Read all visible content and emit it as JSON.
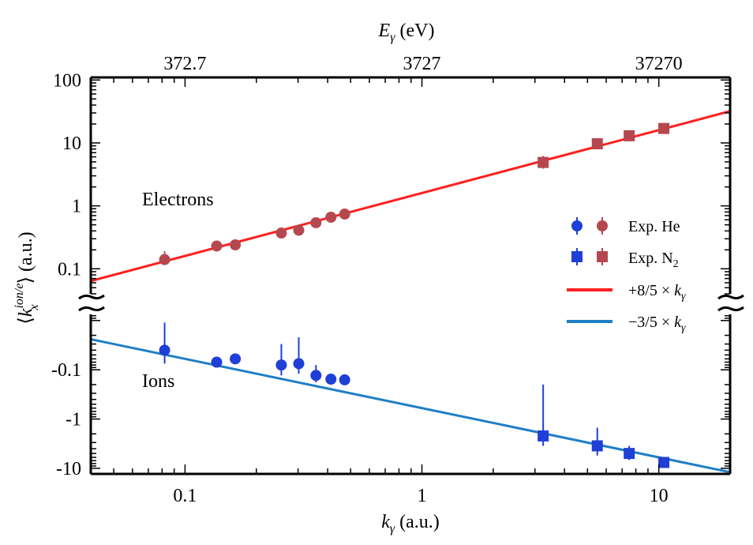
{
  "chart_data": {
    "type": "scatter",
    "title": "",
    "xlabel": "k_γ (a.u.)",
    "xlabel_var": "k",
    "xlabel_sub": "γ",
    "xlabel_unit": " (a.u.)",
    "x_top_label": "E_γ (eV)",
    "x_top_label_var": "E",
    "x_top_label_sub": "γ",
    "x_top_label_unit": " (eV)",
    "ylabel": "⟨k_x^{ion/e}⟩ (a.u.)",
    "ylabel_open": "⟨",
    "ylabel_var": "k",
    "ylabel_sub": "x",
    "ylabel_sup": "ion/e",
    "ylabel_close": "⟩ (a.u.)",
    "xscale": "log",
    "xlim": [
      0.04,
      20
    ],
    "x_ticks": [
      0.1,
      1,
      10
    ],
    "x_tick_labels": [
      "0.1",
      "1",
      "10"
    ],
    "x_top_ticks": [
      0.1,
      1,
      10
    ],
    "x_top_tick_labels": [
      "372.7",
      "3727",
      "37270"
    ],
    "y_upper_scale": "log",
    "y_upper_lim": [
      0.04,
      110
    ],
    "y_upper_ticks": [
      0.1,
      1,
      10,
      100
    ],
    "y_upper_tick_labels": [
      "0.1",
      "1",
      "10",
      "100"
    ],
    "y_lower_scale": "log (negative values)",
    "y_lower_lim": [
      -0.0075,
      -13
    ],
    "y_lower_ticks": [
      -0.1,
      -1,
      -10
    ],
    "y_lower_tick_labels": [
      "-0.1",
      "-1",
      "-10"
    ],
    "annotations": [
      {
        "text": "Electrons",
        "color": "#b5484e",
        "near_x": 0.13,
        "near_y": 1
      },
      {
        "text": "Ions",
        "color": "#1f4fd1",
        "near_x": 0.12,
        "near_y": -0.35
      }
    ],
    "legend": {
      "position": "right",
      "entries": [
        {
          "label": "Exp. He",
          "label_main": "Exp. He",
          "label_sub": "",
          "kind": "points",
          "marker": "circle",
          "colors": [
            "#1f3fd6",
            "#b5484e"
          ]
        },
        {
          "label": "Exp. N₂",
          "label_main": "Exp. N",
          "label_sub": "2",
          "kind": "points",
          "marker": "square",
          "colors": [
            "#1f3fd6",
            "#b5484e"
          ]
        },
        {
          "label": "+8/5 × k_γ",
          "label_main": "+8/5 × ",
          "label_var": "k",
          "label_sub": "γ",
          "kind": "line",
          "color": "#ff1f1f"
        },
        {
          "label": "−3/5 × k_γ",
          "label_main": "−3/5 × ",
          "label_var": "k",
          "label_sub": "γ",
          "kind": "line",
          "color": "#1f7fc4"
        }
      ]
    },
    "series": [
      {
        "name": "+8/5 × k_γ",
        "kind": "line",
        "color": "#ff1f1f",
        "panel": "upper",
        "slope": 1.6,
        "x_range": [
          0.04,
          20
        ]
      },
      {
        "name": "−3/5 × k_γ",
        "kind": "line",
        "color": "#1f7fc4",
        "panel": "lower",
        "slope": -0.6,
        "x_range": [
          0.04,
          20
        ]
      },
      {
        "name": "Electrons, Exp. He",
        "kind": "points",
        "marker": "circle",
        "color": "#b5484e",
        "panel": "upper",
        "points": [
          {
            "x": 0.082,
            "y": 0.14,
            "ylo": 0.115,
            "yhi": 0.19
          },
          {
            "x": 0.136,
            "y": 0.23
          },
          {
            "x": 0.163,
            "y": 0.24
          },
          {
            "x": 0.255,
            "y": 0.37
          },
          {
            "x": 0.302,
            "y": 0.41
          },
          {
            "x": 0.357,
            "y": 0.54
          },
          {
            "x": 0.413,
            "y": 0.66
          },
          {
            "x": 0.472,
            "y": 0.74
          }
        ]
      },
      {
        "name": "Electrons, Exp. N₂",
        "kind": "points",
        "marker": "square",
        "color": "#b5484e",
        "panel": "upper",
        "points": [
          {
            "x": 3.25,
            "y": 4.9,
            "ylo": 3.9,
            "yhi": 6.2
          },
          {
            "x": 5.5,
            "y": 9.7
          },
          {
            "x": 7.5,
            "y": 13
          },
          {
            "x": 10.5,
            "y": 17
          }
        ]
      },
      {
        "name": "Ions, Exp. He",
        "kind": "points",
        "marker": "circle",
        "color": "#1f3fd6",
        "panel": "lower",
        "points": [
          {
            "x": 0.082,
            "y": -0.04,
            "ylo": -0.075,
            "yhi": -0.011
          },
          {
            "x": 0.136,
            "y": -0.07,
            "ylo": -0.09,
            "yhi": -0.055
          },
          {
            "x": 0.163,
            "y": -0.06
          },
          {
            "x": 0.255,
            "y": -0.08,
            "ylo": -0.13,
            "yhi": -0.03
          },
          {
            "x": 0.302,
            "y": -0.075,
            "ylo": -0.12,
            "yhi": -0.022
          },
          {
            "x": 0.357,
            "y": -0.13,
            "ylo": -0.18,
            "yhi": -0.08
          },
          {
            "x": 0.413,
            "y": -0.155
          },
          {
            "x": 0.472,
            "y": -0.16
          }
        ]
      },
      {
        "name": "Ions, Exp. N₂",
        "kind": "points",
        "marker": "square",
        "color": "#1f3fd6",
        "panel": "lower",
        "points": [
          {
            "x": 3.25,
            "y": -2.2,
            "ylo": -3.5,
            "yhi": -0.2
          },
          {
            "x": 5.5,
            "y": -3.5,
            "ylo": -5.5,
            "yhi": -1.5
          },
          {
            "x": 7.5,
            "y": -5.0,
            "ylo": -6.8,
            "yhi": -3.5
          },
          {
            "x": 10.5,
            "y": -7.6
          }
        ]
      }
    ]
  }
}
